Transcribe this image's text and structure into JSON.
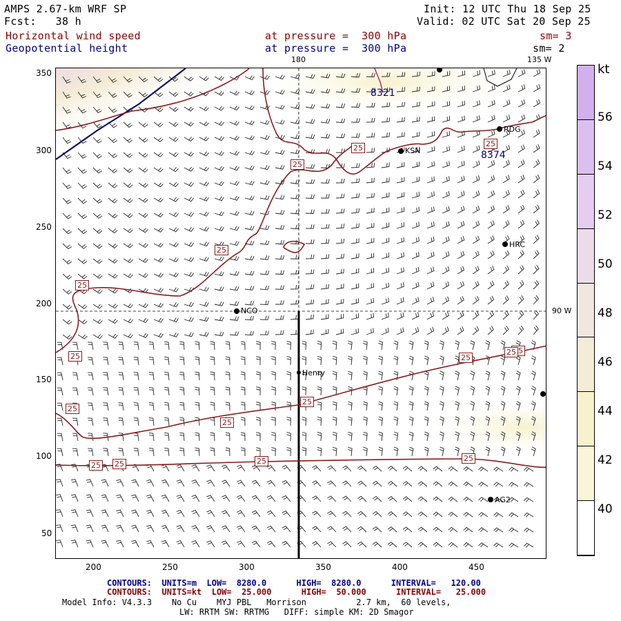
{
  "header": {
    "model": "AMPS 2.67-km WRF SP",
    "fcst": "Fcst:   38 h",
    "init": "Init: 12 UTC Thu 18 Sep 25",
    "valid": "Valid: 02 UTC Sat 20 Sep 25",
    "field1_name": "Horizontal wind speed",
    "field1_level": "at pressure =  300 hPa",
    "field1_sm": "sm= 3",
    "field2_name": "Geopotential height",
    "field2_level": "at pressure =  300 hPa",
    "field2_sm": "sm= 2"
  },
  "map": {
    "lon_labels": {
      "top_180": "180",
      "top_135w": "135 W",
      "right_90w": "90 W"
    },
    "stations": [
      {
        "name": "NCO"
      },
      {
        "name": "Henry"
      },
      {
        "name": "HRC"
      },
      {
        "name": "RDG"
      },
      {
        "name": "KSN"
      },
      {
        "name": "AG2"
      }
    ],
    "height_labels": [
      "8321",
      "8374"
    ],
    "speed_labels": [
      "25",
      "25",
      "25",
      "25",
      "25",
      "25",
      "25",
      "25",
      "25",
      "25",
      "25",
      "25",
      "25",
      "25",
      "25",
      "25"
    ],
    "x_ticks": [
      "200",
      "250",
      "300",
      "350",
      "400",
      "450"
    ],
    "y_ticks": [
      "50",
      "100",
      "150",
      "200",
      "250",
      "300",
      "350"
    ]
  },
  "colorbar": {
    "unit": "kt",
    "labels": [
      "56",
      "54",
      "52",
      "50",
      "48",
      "46",
      "44",
      "42",
      "40"
    ],
    "colors": [
      "#d2b0ee",
      "#dbbfee",
      "#e4cdee",
      "#ecdbe8",
      "#f2e6e0",
      "#f5ecd6",
      "#f7f1cc",
      "#f9f5d6",
      "#ffffff"
    ]
  },
  "footer": {
    "contours1": "CONTOURS:  UNITS=m  LOW=  8280.0      HIGH=  8280.0      INTERVAL=   120.00",
    "contours2": "CONTOURS:  UNITS=kt  LOW=  25.000      HIGH=  50.000      INTERVAL=   25.000",
    "model_info": "Model Info: V4.3.3    No Cu    MYJ PBL   Morrison          2.7 km,  60 levels,",
    "model_info2": "LW: RRTM SW: RRTMG   DIFF: simple KM: 2D Smagor"
  }
}
